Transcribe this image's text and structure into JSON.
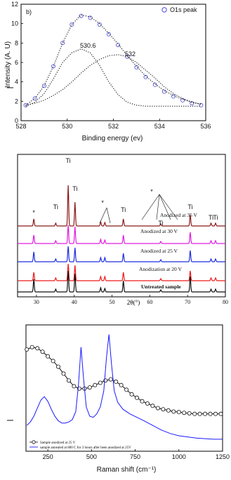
{
  "chart_data": [
    {
      "type": "line",
      "panel_label": "b)",
      "xlabel": "Binding energy (ev)",
      "ylabel": "Intensity (A. U)",
      "xlim": [
        528,
        536
      ],
      "ylim": [
        0,
        12
      ],
      "xticks": [
        "528",
        "530",
        "532",
        "534",
        "536"
      ],
      "yticks": [
        "0",
        "2",
        "4",
        "6",
        "8",
        "10",
        "12"
      ],
      "legend": {
        "label": "O1s peak",
        "position": "top-right"
      },
      "annotations": [
        "530.6",
        "532"
      ],
      "series": [
        {
          "name": "O1s peak",
          "style": "open-circles",
          "color": "#4a4ad6",
          "x": [
            528.2,
            528.6,
            529.0,
            529.4,
            529.8,
            530.2,
            530.6,
            531.0,
            531.4,
            531.8,
            532.2,
            532.6,
            533.0,
            533.4,
            533.8,
            534.2,
            534.6,
            535.0,
            535.4,
            535.8
          ],
          "y": [
            1.6,
            2.3,
            3.6,
            5.6,
            8.0,
            9.9,
            10.8,
            10.6,
            9.9,
            8.9,
            7.8,
            6.6,
            5.5,
            4.5,
            3.7,
            3.0,
            2.5,
            2.1,
            1.8,
            1.6
          ]
        },
        {
          "name": "",
          "style": "dotted",
          "color": "#111111",
          "x": [
            528.2,
            528.6,
            529.0,
            529.4,
            529.8,
            530.2,
            530.6,
            531.0,
            531.4,
            531.8,
            532.2,
            532.6,
            533.0,
            533.4,
            533.8,
            534.2,
            534.6,
            535.0,
            535.4,
            535.8
          ],
          "y": [
            1.6,
            2.3,
            3.6,
            5.6,
            8.0,
            9.9,
            10.9,
            10.7,
            10.0,
            9.0,
            7.9,
            6.7,
            5.6,
            4.6,
            3.8,
            3.1,
            2.6,
            2.2,
            1.9,
            1.7
          ]
        },
        {
          "name": "",
          "style": "dotted",
          "color": "#111111",
          "x": [
            528.2,
            528.6,
            529.0,
            529.4,
            529.8,
            530.2,
            530.6,
            531.0,
            531.4,
            531.8,
            532.2,
            532.6,
            533.0,
            533.4,
            533.8,
            534.2,
            534.6,
            535.0,
            535.4,
            535.8
          ],
          "y": [
            1.5,
            1.9,
            2.8,
            4.3,
            6.0,
            7.0,
            7.4,
            7.0,
            5.7,
            4.0,
            2.7,
            1.9,
            1.6,
            1.5,
            1.5,
            1.5,
            1.5,
            1.5,
            1.5,
            1.5
          ]
        },
        {
          "name": "",
          "style": "dotted",
          "color": "#111111",
          "x": [
            528.2,
            528.6,
            529.0,
            529.4,
            529.8,
            530.2,
            530.6,
            531.0,
            531.4,
            531.8,
            532.2,
            532.6,
            533.0,
            533.4,
            533.8,
            534.2,
            534.6,
            535.0,
            535.4,
            535.8
          ],
          "y": [
            1.6,
            1.8,
            2.1,
            2.6,
            3.2,
            4.0,
            4.9,
            5.7,
            6.3,
            6.7,
            6.8,
            6.6,
            6.0,
            5.2,
            4.4,
            3.5,
            2.8,
            2.3,
            1.9,
            1.7
          ]
        }
      ]
    },
    {
      "type": "line",
      "xlabel": "2θ(°)",
      "xlim": [
        25,
        80
      ],
      "xticks": [
        "30",
        "40",
        "50",
        "60",
        "70",
        "80"
      ],
      "peak_positions": [
        29.3,
        35.1,
        38.4,
        40.2,
        47.0,
        48.1,
        53.0,
        62.9,
        70.7,
        76.2,
        77.4
      ],
      "peak_labels": [
        {
          "text": "Ti",
          "x": 38.4
        },
        {
          "text": "Ti",
          "x": 40.2
        },
        {
          "text": "Ti",
          "x": 35.1
        },
        {
          "text": "Ti",
          "x": 53.0
        },
        {
          "text": "Ti",
          "x": 70.7
        },
        {
          "text": "Ti",
          "x": 62.9
        },
        {
          "text": "Ti",
          "x": 76.2
        },
        {
          "text": "Ti",
          "x": 77.4
        },
        {
          "text": "*",
          "x": 29.3
        },
        {
          "text": "*",
          "x": 47.5
        },
        {
          "text": "*",
          "x": 60.5
        }
      ],
      "series": [
        {
          "name": "Anodized at 35 V",
          "color": "#8b1a1a",
          "peak_heights": [
            10,
            4,
            58,
            34,
            6,
            5,
            10,
            3,
            16,
            4,
            4
          ]
        },
        {
          "name": "Anodized at 30 V",
          "color": "#e01ce0",
          "peak_heights": [
            12,
            4,
            26,
            24,
            6,
            5,
            12,
            3,
            16,
            4,
            4
          ]
        },
        {
          "name": "Anodized at 25 V",
          "color": "#1d2ee0",
          "peak_heights": [
            14,
            4,
            22,
            20,
            6,
            6,
            12,
            3,
            16,
            4,
            4
          ]
        },
        {
          "name": "Anodization at 20 V",
          "color": "#ee1c1c",
          "peak_heights": [
            12,
            4,
            24,
            22,
            6,
            6,
            12,
            3,
            14,
            4,
            4
          ]
        },
        {
          "name": "Untreated sample",
          "color": "#111111",
          "peak_heights": [
            18,
            4,
            30,
            26,
            6,
            5,
            16,
            3,
            22,
            4,
            4
          ]
        }
      ]
    },
    {
      "type": "line",
      "xlabel": "Raman shift (cm⁻¹)",
      "xlim": [
        125,
        1250
      ],
      "xticks": [
        "250",
        "500",
        "750",
        "1000",
        "1250"
      ],
      "legend": {
        "position": "bottom-left"
      },
      "series": [
        {
          "name": "Sample anodized at 25 V",
          "style": "line-open-circles",
          "color": "#111111",
          "x": [
            130,
            160,
            190,
            220,
            250,
            280,
            310,
            340,
            370,
            400,
            430,
            460,
            490,
            520,
            550,
            580,
            610,
            640,
            670,
            700,
            730,
            760,
            790,
            820,
            850,
            880,
            910,
            940,
            970,
            1000,
            1030,
            1060,
            1090,
            1120,
            1150,
            1180,
            1210,
            1240
          ],
          "y": [
            0.86,
            0.88,
            0.87,
            0.84,
            0.8,
            0.76,
            0.71,
            0.65,
            0.59,
            0.54,
            0.52,
            0.52,
            0.53,
            0.55,
            0.57,
            0.59,
            0.6,
            0.58,
            0.55,
            0.51,
            0.47,
            0.44,
            0.41,
            0.39,
            0.37,
            0.35,
            0.34,
            0.33,
            0.32,
            0.315,
            0.31,
            0.305,
            0.3,
            0.3,
            0.3,
            0.3,
            0.3,
            0.3
          ]
        },
        {
          "name": "sample annealed at 800 C for 3 hours after been anodized at 25V",
          "style": "line",
          "color": "#1a1aff",
          "x": [
            130,
            150,
            170,
            190,
            210,
            230,
            250,
            270,
            290,
            310,
            330,
            350,
            370,
            390,
            410,
            425,
            440,
            455,
            470,
            490,
            510,
            530,
            550,
            570,
            585,
            600,
            615,
            630,
            650,
            680,
            720,
            760,
            800,
            850,
            900,
            950,
            1000,
            1050,
            1100,
            1150,
            1200,
            1250
          ],
          "y": [
            0.2,
            0.23,
            0.28,
            0.35,
            0.42,
            0.45,
            0.41,
            0.34,
            0.28,
            0.24,
            0.22,
            0.22,
            0.23,
            0.25,
            0.32,
            0.55,
            0.88,
            0.6,
            0.36,
            0.28,
            0.27,
            0.3,
            0.36,
            0.5,
            0.78,
            0.99,
            0.72,
            0.5,
            0.4,
            0.34,
            0.3,
            0.27,
            0.24,
            0.2,
            0.16,
            0.13,
            0.11,
            0.1,
            0.09,
            0.085,
            0.08,
            0.08
          ]
        }
      ]
    }
  ]
}
